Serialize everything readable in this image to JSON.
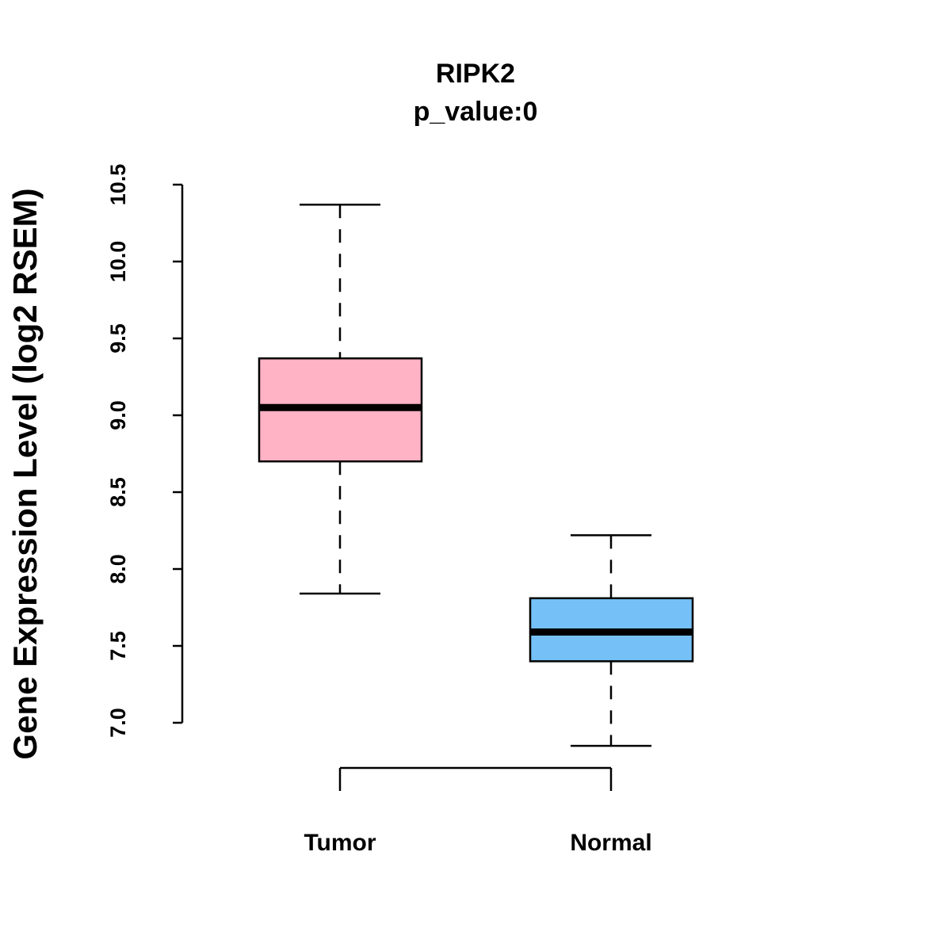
{
  "chart_data": {
    "type": "box",
    "title": "RIPK2",
    "subtitle": "p_value:0",
    "xlabel": "",
    "ylabel": "Gene Expression Level (log2 RSEM)",
    "ylim": [
      7.0,
      10.5
    ],
    "yticks": [
      7.0,
      7.5,
      8.0,
      8.5,
      9.0,
      9.5,
      10.0,
      10.5
    ],
    "ytick_labels": [
      "7.0",
      "7.5",
      "8.0",
      "8.5",
      "9.0",
      "9.5",
      "10.0",
      "10.5"
    ],
    "grid": false,
    "categories": [
      "Tumor",
      "Normal"
    ],
    "series": [
      {
        "name": "Tumor",
        "color": "#FFB3C4",
        "whisker_low": 7.84,
        "q1": 8.7,
        "median": 9.05,
        "q3": 9.37,
        "whisker_high": 10.37
      },
      {
        "name": "Normal",
        "color": "#75C1F7",
        "whisker_low": 6.85,
        "q1": 7.4,
        "median": 7.59,
        "q3": 7.81,
        "whisker_high": 8.22
      }
    ]
  }
}
